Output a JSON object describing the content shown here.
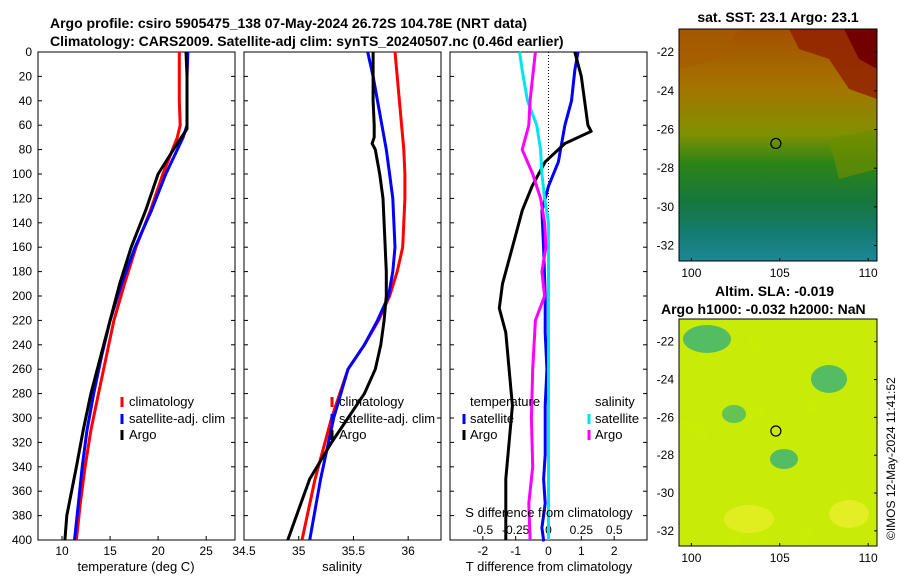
{
  "titles": {
    "line1": "Argo profile: csiro 5905475_138 07-May-2024 26.72S 104.78E (NRT data)",
    "line2": "Climatology: CARS2009. Satellite-adj clim: synTS_20240507.nc (0.46d earlier)"
  },
  "colors": {
    "climatology": "#ff0000",
    "satellite": "#0000ff",
    "argo": "#000000",
    "sal_satellite": "#00e5ee",
    "sal_argo": "#ff00ff"
  },
  "chart_data": [
    {
      "type": "line",
      "name": "temperature-profile",
      "xlabel": "temperature (deg C)",
      "ylabel": "",
      "xlim": [
        7.5,
        28
      ],
      "ylim": [
        400,
        0
      ],
      "xticks": [
        10,
        15,
        20,
        25
      ],
      "xtick_labels": [
        "10",
        "15",
        "20",
        "25"
      ],
      "yticks": [
        0,
        20,
        40,
        60,
        80,
        100,
        120,
        140,
        160,
        180,
        200,
        220,
        240,
        260,
        280,
        300,
        320,
        340,
        360,
        380,
        400
      ],
      "ytick_labels": [
        "0",
        "20",
        "40",
        "60",
        "80",
        "100",
        "120",
        "140",
        "160",
        "180",
        "200",
        "220",
        "240",
        "260",
        "280",
        "300",
        "320",
        "340",
        "360",
        "380",
        "400"
      ],
      "legend": [
        "climatology",
        "satellite-adj. clim",
        "Argo"
      ],
      "series": [
        {
          "name": "climatology",
          "color": "#ff0000",
          "x": [
            22.2,
            22.2,
            22.2,
            22.3,
            22.0,
            20.5,
            19.2,
            17.7,
            16.5,
            15.4,
            14.6,
            13.8,
            13.0,
            12.4,
            11.9,
            11.5
          ],
          "y": [
            0,
            20,
            40,
            60,
            70,
            100,
            130,
            160,
            190,
            220,
            250,
            280,
            310,
            340,
            370,
            400
          ]
        },
        {
          "name": "satellite-adj. clim",
          "color": "#0000ff",
          "x": [
            23.1,
            23.0,
            23.0,
            23.0,
            22.6,
            20.8,
            19.3,
            17.6,
            16.2,
            15.0,
            14.1,
            13.3,
            12.6,
            12.1,
            11.7,
            11.3
          ],
          "y": [
            0,
            20,
            40,
            60,
            70,
            100,
            130,
            160,
            190,
            220,
            250,
            280,
            310,
            340,
            370,
            400
          ]
        },
        {
          "name": "Argo",
          "color": "#000000",
          "x": [
            22.9,
            23.0,
            23.0,
            23.0,
            22.0,
            20.0,
            18.7,
            17.2,
            16.0,
            15.0,
            14.0,
            13.0,
            12.2,
            11.5,
            11.0,
            10.5,
            10.3
          ],
          "y": [
            0,
            20,
            40,
            63,
            75,
            100,
            130,
            160,
            190,
            220,
            250,
            280,
            310,
            340,
            360,
            380,
            400
          ]
        }
      ]
    },
    {
      "type": "line",
      "name": "salinity-profile",
      "xlabel": "salinity",
      "ylabel": "",
      "xlim": [
        34.5,
        36.3
      ],
      "ylim": [
        400,
        0
      ],
      "xticks": [
        34.5,
        35,
        35.5,
        36
      ],
      "xtick_labels": [
        "34.5",
        "35",
        "35.5",
        "36"
      ],
      "legend": [
        "climatology",
        "satellite-adj. clim",
        "Argo"
      ],
      "series": [
        {
          "name": "climatology",
          "color": "#ff0000",
          "x": [
            35.88,
            35.9,
            35.92,
            35.94,
            35.96,
            35.97,
            35.97,
            35.96,
            35.95,
            35.9,
            35.83,
            35.73,
            35.6,
            35.45,
            35.3,
            35.15,
            35.03
          ],
          "y": [
            0,
            20,
            40,
            60,
            80,
            100,
            120,
            140,
            160,
            180,
            200,
            220,
            240,
            260,
            300,
            350,
            400
          ]
        },
        {
          "name": "satellite-adj. clim",
          "color": "#0000ff",
          "x": [
            35.63,
            35.68,
            35.72,
            35.76,
            35.8,
            35.83,
            35.86,
            35.87,
            35.88,
            35.86,
            35.82,
            35.72,
            35.6,
            35.45,
            35.32,
            35.2,
            35.1
          ],
          "y": [
            0,
            20,
            40,
            60,
            80,
            100,
            120,
            140,
            160,
            180,
            200,
            220,
            240,
            260,
            300,
            350,
            400
          ]
        },
        {
          "name": "Argo",
          "color": "#000000",
          "x": [
            35.68,
            35.68,
            35.68,
            35.69,
            35.69,
            35.67,
            35.7,
            35.72,
            35.74,
            35.77,
            35.78,
            35.79,
            35.8,
            35.8,
            35.78,
            35.75,
            35.7,
            35.6,
            35.45,
            35.3,
            35.1,
            34.98,
            34.9
          ],
          "y": [
            0,
            20,
            40,
            60,
            70,
            75,
            80,
            90,
            100,
            120,
            140,
            160,
            180,
            200,
            220,
            240,
            260,
            280,
            300,
            320,
            350,
            380,
            400
          ]
        }
      ]
    },
    {
      "type": "line",
      "name": "difference-profile",
      "xlabel": "T difference from climatology",
      "top_xlabel": "S difference from climatology",
      "xlim": [
        -3,
        3
      ],
      "ylim": [
        400,
        0
      ],
      "xticks": [
        -2,
        -1,
        0,
        1,
        2
      ],
      "xtick_labels": [
        "-2",
        "-1",
        "0",
        "1",
        "2"
      ],
      "top_xticks": [
        -0.5,
        -0.25,
        0,
        0.25,
        0.5
      ],
      "top_xtick_labels": [
        "-0.5",
        "-0.25",
        "0",
        "0.25",
        "0.5"
      ],
      "top_xlim": [
        -0.75,
        0.75
      ],
      "legend_groups": [
        {
          "title": "temperature",
          "items": [
            "satellite",
            "Argo"
          ]
        },
        {
          "title": "salinity",
          "items": [
            "satellite",
            "Argo"
          ]
        }
      ],
      "series": [
        {
          "name": "temperature satellite",
          "color": "#0000ff",
          "axis": "T",
          "x": [
            0.9,
            0.8,
            0.7,
            0.5,
            0.3,
            0.0,
            -0.2,
            -0.15,
            -0.1,
            -0.1,
            -0.05,
            -0.1,
            -0.1,
            -0.1,
            -0.15,
            -0.1,
            -0.2,
            -0.15,
            -0.2,
            -0.2
          ],
          "y": [
            0,
            15,
            40,
            60,
            90,
            110,
            130,
            160,
            200,
            230,
            260,
            290,
            310,
            330,
            350,
            370,
            390,
            400,
            400,
            400
          ]
        },
        {
          "name": "temperature Argo",
          "color": "#000000",
          "axis": "T",
          "x": [
            0.8,
            1.0,
            1.1,
            1.2,
            1.3,
            0.5,
            -0.1,
            -0.5,
            -0.8,
            -1.0,
            -1.2,
            -1.4,
            -1.5,
            -1.3,
            -1.2,
            -1.1,
            -1.2,
            -1.3,
            -1.3,
            -1.3
          ],
          "y": [
            0,
            20,
            40,
            60,
            65,
            75,
            90,
            110,
            130,
            150,
            170,
            190,
            210,
            230,
            260,
            290,
            320,
            350,
            380,
            400
          ]
        },
        {
          "name": "salinity satellite",
          "color": "#00e5ee",
          "axis": "S",
          "x": [
            -0.22,
            -0.2,
            -0.16,
            -0.09,
            -0.06,
            -0.05,
            -0.03,
            0.0,
            0.0,
            0.0,
            0.0,
            0.0,
            0.0,
            0.0,
            0.0
          ],
          "y": [
            0,
            15,
            40,
            60,
            80,
            100,
            120,
            140,
            180,
            220,
            260,
            300,
            340,
            370,
            400
          ]
        },
        {
          "name": "salinity Argo",
          "color": "#ff00ff",
          "axis": "S",
          "x": [
            -0.1,
            -0.12,
            -0.14,
            -0.15,
            -0.2,
            -0.12,
            -0.06,
            -0.03,
            -0.02,
            -0.05,
            -0.03,
            -0.1,
            -0.12,
            -0.13,
            -0.12,
            -0.15,
            -0.14
          ],
          "y": [
            0,
            20,
            40,
            60,
            80,
            100,
            120,
            140,
            160,
            180,
            200,
            220,
            260,
            300,
            340,
            370,
            400
          ]
        }
      ]
    },
    {
      "type": "heatmap",
      "name": "sst-map",
      "title": "sat. SST: 23.1  Argo: 23.1",
      "xticks": [
        100,
        105,
        110
      ],
      "xtick_labels": [
        "100",
        "105",
        "110"
      ],
      "yticks": [
        -22,
        -24,
        -26,
        -28,
        -30,
        -32
      ],
      "ytick_labels": [
        "-22",
        "-24",
        "-26",
        "-28",
        "-30",
        "-32"
      ],
      "xlim": [
        99.3,
        110.5
      ],
      "ylim": [
        -32.8,
        -20.8
      ],
      "marker": {
        "lon": 104.78,
        "lat": -26.72
      }
    },
    {
      "type": "heatmap",
      "name": "sla-map",
      "title_line1": "Altim. SLA: -0.019",
      "title_line2": "Argo h1000: -0.032 h2000: NaN",
      "xticks": [
        100,
        105,
        110
      ],
      "xtick_labels": [
        "100",
        "105",
        "110"
      ],
      "yticks": [
        -22,
        -24,
        -26,
        -28,
        -30,
        -32
      ],
      "ytick_labels": [
        "-22",
        "-24",
        "-26",
        "-28",
        "-30",
        "-32"
      ],
      "xlim": [
        99.3,
        110.5
      ],
      "ylim": [
        -32.8,
        -20.8
      ],
      "marker": {
        "lon": 104.78,
        "lat": -26.72
      }
    }
  ],
  "credit": "©IMOS 12-May-2024 11:41:52"
}
